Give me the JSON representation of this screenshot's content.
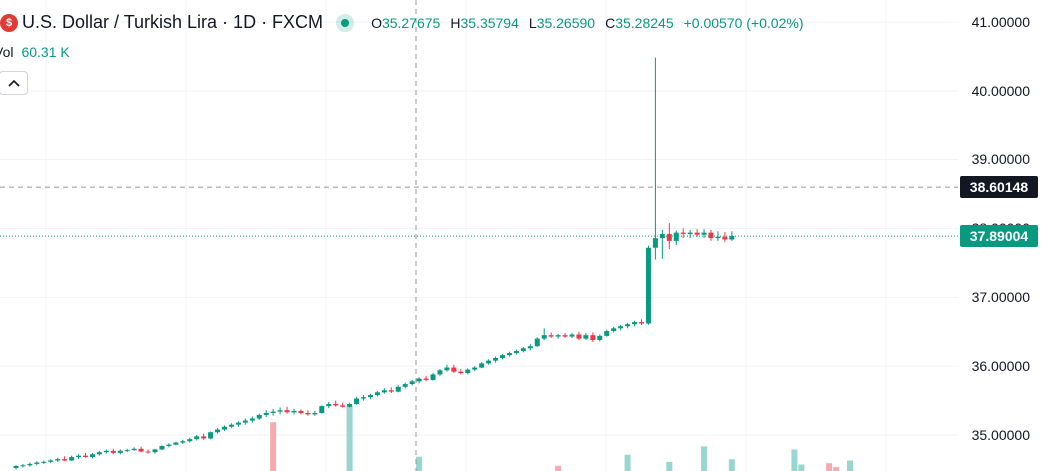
{
  "header": {
    "symbol_title": "U.S. Dollar / Turkish Lira · 1D · FXCM",
    "ohlc": {
      "o_label": "O",
      "o_value": "35.27675",
      "h_label": "H",
      "h_value": "35.35794",
      "l_label": "L",
      "l_value": "35.26590",
      "c_label": "C",
      "c_value": "35.28245",
      "change": "+0.00570 (+0.02%)"
    },
    "volume_label": "Vol",
    "volume_value": "60.31 K",
    "collapse_icon": "chevron-up-icon"
  },
  "colors": {
    "up": "#089981",
    "down": "#f23645",
    "vol_up": "#98d6ce",
    "vol_down": "#f6a9ae",
    "grid": "#f0f3fa",
    "crosshair": "#9598a1"
  },
  "price_axis": {
    "ticks": [
      "41.00000",
      "40.00000",
      "39.00000",
      "38.00000",
      "37.00000",
      "36.00000",
      "35.00000"
    ],
    "crosshair_price": "38.60148",
    "last_price": "37.89004"
  },
  "chart_data": {
    "type": "candlestick",
    "y_range": [
      34.6,
      41.3
    ],
    "tick_values": [
      41,
      40,
      39,
      38,
      37,
      36,
      35
    ],
    "crosshair_value": 38.60148,
    "last_value": 37.89004,
    "candles": [
      [
        34.52,
        34.56,
        34.5,
        34.55
      ],
      [
        34.55,
        34.58,
        34.53,
        34.56
      ],
      [
        34.56,
        34.6,
        34.54,
        34.58
      ],
      [
        34.58,
        34.62,
        34.56,
        34.6
      ],
      [
        34.6,
        34.63,
        34.58,
        34.61
      ],
      [
        34.61,
        34.65,
        34.59,
        34.63
      ],
      [
        34.63,
        34.67,
        34.61,
        34.65
      ],
      [
        34.65,
        34.69,
        34.62,
        34.63
      ],
      [
        34.63,
        34.7,
        34.62,
        34.68
      ],
      [
        34.68,
        34.72,
        34.65,
        34.7
      ],
      [
        34.7,
        34.74,
        34.67,
        34.68
      ],
      [
        34.68,
        34.74,
        34.66,
        34.72
      ],
      [
        34.72,
        34.77,
        34.7,
        34.75
      ],
      [
        34.75,
        34.79,
        34.73,
        34.77
      ],
      [
        34.77,
        34.8,
        34.72,
        34.74
      ],
      [
        34.74,
        34.79,
        34.72,
        34.77
      ],
      [
        34.77,
        34.8,
        34.75,
        34.78
      ],
      [
        34.78,
        34.82,
        34.77,
        34.8
      ],
      [
        34.8,
        34.83,
        34.75,
        34.76
      ],
      [
        34.76,
        34.79,
        34.73,
        34.75
      ],
      [
        34.75,
        34.8,
        34.73,
        34.79
      ],
      [
        34.79,
        34.85,
        34.78,
        34.84
      ],
      [
        34.84,
        34.88,
        34.82,
        34.86
      ],
      [
        34.86,
        34.9,
        34.85,
        34.89
      ],
      [
        34.89,
        34.93,
        34.87,
        34.91
      ],
      [
        34.91,
        34.96,
        34.89,
        34.94
      ],
      [
        34.94,
        35.0,
        34.92,
        34.98
      ],
      [
        34.98,
        35.02,
        34.93,
        34.95
      ],
      [
        34.95,
        35.05,
        34.94,
        35.04
      ],
      [
        35.04,
        35.1,
        35.02,
        35.08
      ],
      [
        35.08,
        35.14,
        35.06,
        35.12
      ],
      [
        35.12,
        35.17,
        35.1,
        35.15
      ],
      [
        35.15,
        35.2,
        35.12,
        35.18
      ],
      [
        35.18,
        35.24,
        35.15,
        35.21
      ],
      [
        35.21,
        35.27,
        35.18,
        35.24
      ],
      [
        35.24,
        35.31,
        35.22,
        35.29
      ],
      [
        35.29,
        35.36,
        35.26,
        35.32
      ],
      [
        35.32,
        35.38,
        35.28,
        35.34
      ],
      [
        35.34,
        35.4,
        35.3,
        35.36
      ],
      [
        35.36,
        35.41,
        35.31,
        35.33
      ],
      [
        35.33,
        35.38,
        35.3,
        35.35
      ],
      [
        35.35,
        35.37,
        35.3,
        35.32
      ],
      [
        35.32,
        35.36,
        35.28,
        35.3
      ],
      [
        35.3,
        35.35,
        35.28,
        35.32
      ],
      [
        35.32,
        35.43,
        35.31,
        35.42
      ],
      [
        35.42,
        35.48,
        35.39,
        35.45
      ],
      [
        35.45,
        35.5,
        35.41,
        35.43
      ],
      [
        35.43,
        35.47,
        35.4,
        35.41
      ],
      [
        35.41,
        35.47,
        35.4,
        35.45
      ],
      [
        35.45,
        35.55,
        35.44,
        35.53
      ],
      [
        35.53,
        35.58,
        35.5,
        35.55
      ],
      [
        35.55,
        35.6,
        35.52,
        35.58
      ],
      [
        35.58,
        35.64,
        35.56,
        35.62
      ],
      [
        35.62,
        35.68,
        35.6,
        35.65
      ],
      [
        35.65,
        35.69,
        35.61,
        35.63
      ],
      [
        35.63,
        35.72,
        35.62,
        35.7
      ],
      [
        35.7,
        35.76,
        35.68,
        35.74
      ],
      [
        35.74,
        35.8,
        35.72,
        35.78
      ],
      [
        35.78,
        35.84,
        35.75,
        35.82
      ],
      [
        35.82,
        35.86,
        35.78,
        35.8
      ],
      [
        35.8,
        35.9,
        35.79,
        35.88
      ],
      [
        35.88,
        35.96,
        35.86,
        35.94
      ],
      [
        35.94,
        36.02,
        35.92,
        35.98
      ],
      [
        35.98,
        36.02,
        35.9,
        35.92
      ],
      [
        35.92,
        35.96,
        35.88,
        35.9
      ],
      [
        35.9,
        35.97,
        35.88,
        35.95
      ],
      [
        35.95,
        36.0,
        35.93,
        35.98
      ],
      [
        35.98,
        36.06,
        35.97,
        36.04
      ],
      [
        36.04,
        36.1,
        36.02,
        36.08
      ],
      [
        36.08,
        36.14,
        36.05,
        36.12
      ],
      [
        36.12,
        36.18,
        36.1,
        36.16
      ],
      [
        36.16,
        36.21,
        36.14,
        36.19
      ],
      [
        36.19,
        36.24,
        36.17,
        36.22
      ],
      [
        36.22,
        36.28,
        36.2,
        36.26
      ],
      [
        36.26,
        36.32,
        36.23,
        36.29
      ],
      [
        36.29,
        36.42,
        36.28,
        36.4
      ],
      [
        36.4,
        36.55,
        36.38,
        36.45
      ],
      [
        36.45,
        36.49,
        36.41,
        36.43
      ],
      [
        36.43,
        36.47,
        36.4,
        36.45
      ],
      [
        36.45,
        36.48,
        36.41,
        36.43
      ],
      [
        36.43,
        36.48,
        36.41,
        36.46
      ],
      [
        36.46,
        36.5,
        36.38,
        36.4
      ],
      [
        36.4,
        36.48,
        36.38,
        36.45
      ],
      [
        36.45,
        36.49,
        36.35,
        36.38
      ],
      [
        36.38,
        36.46,
        36.36,
        36.44
      ],
      [
        36.44,
        36.53,
        36.43,
        36.51
      ],
      [
        36.51,
        36.57,
        36.49,
        36.55
      ],
      [
        36.55,
        36.6,
        36.52,
        36.58
      ],
      [
        36.58,
        36.63,
        36.55,
        36.61
      ],
      [
        36.61,
        36.66,
        36.58,
        36.64
      ],
      [
        36.64,
        36.68,
        36.6,
        36.62
      ],
      [
        36.62,
        37.75,
        36.6,
        37.72
      ],
      [
        37.72,
        40.48,
        37.55,
        37.86
      ],
      [
        37.86,
        37.98,
        37.56,
        37.92
      ],
      [
        37.92,
        38.08,
        37.7,
        37.82
      ],
      [
        37.82,
        37.97,
        37.76,
        37.94
      ],
      [
        37.94,
        38.0,
        37.86,
        37.92
      ],
      [
        37.92,
        37.98,
        37.86,
        37.94
      ],
      [
        37.94,
        37.99,
        37.88,
        37.91
      ],
      [
        37.91,
        37.99,
        37.86,
        37.94
      ],
      [
        37.94,
        37.98,
        37.82,
        37.86
      ],
      [
        37.86,
        37.96,
        37.82,
        37.88
      ],
      [
        37.88,
        37.95,
        37.8,
        37.84
      ],
      [
        37.84,
        37.96,
        37.82,
        37.89
      ]
    ],
    "volume": {
      "max_value": 100,
      "bars": [
        [
          18,
          0,
          "up"
        ],
        [
          37,
          75,
          "down"
        ],
        [
          48,
          100,
          "up"
        ],
        [
          58,
          22,
          "up"
        ],
        [
          78,
          8,
          "down"
        ],
        [
          88,
          25,
          "up"
        ],
        [
          94,
          14,
          "up"
        ],
        [
          99,
          38,
          "up"
        ],
        [
          103,
          18,
          "up"
        ],
        [
          112,
          33,
          "up"
        ],
        [
          113,
          10,
          "up"
        ],
        [
          117,
          12,
          "down"
        ],
        [
          118,
          6,
          "down"
        ],
        [
          120,
          16,
          "up"
        ]
      ]
    }
  }
}
